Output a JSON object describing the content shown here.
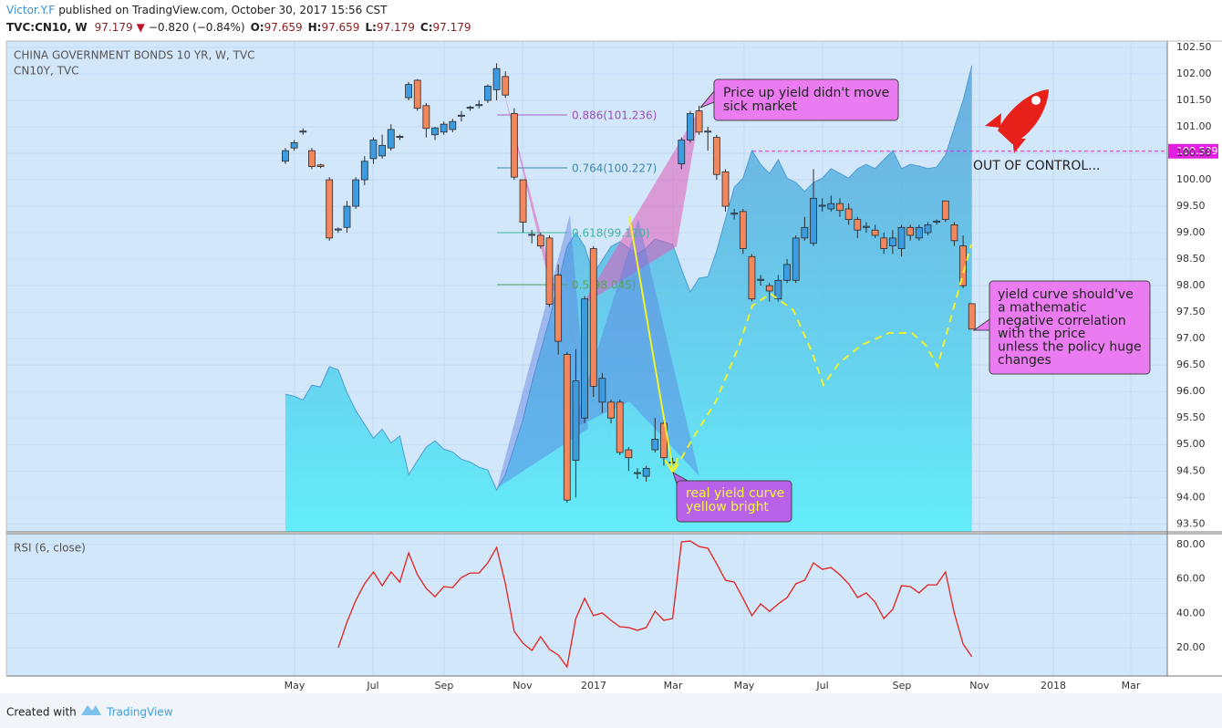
{
  "header": {
    "author": "Victor.Y.F",
    "published": "published on TradingView.com, October 30, 2017 15:56 CST",
    "symbol": "TVC:CN10, W",
    "last": "97.179",
    "change": "−0.820 (−0.84%)",
    "ohlc": [
      {
        "label": "O:",
        "value": "97.659"
      },
      {
        "label": "H:",
        "value": "97.659"
      },
      {
        "label": "L:",
        "value": "97.179"
      },
      {
        "label": "C:",
        "value": "97.179"
      }
    ]
  },
  "chart_data": [
    {
      "type": "candlestick",
      "title": "CHINA GOVERNMENT BONDS 10 YR, W, TVC",
      "x": [
        0,
        1,
        2,
        3,
        4,
        5,
        6,
        7,
        8,
        9,
        10,
        11,
        12,
        13,
        14,
        15,
        16,
        17,
        18,
        19,
        20,
        21,
        22,
        23,
        24,
        25,
        26,
        27,
        28,
        29,
        30,
        31,
        32,
        33,
        34,
        35,
        36,
        37,
        38,
        39,
        40,
        41,
        42,
        43,
        44,
        45,
        46,
        47,
        48,
        49,
        50,
        51,
        52,
        53,
        54,
        55,
        56,
        57,
        58,
        59,
        60,
        61,
        62,
        63,
        64,
        65,
        66,
        67,
        68,
        69,
        70,
        71,
        72,
        73,
        74,
        75,
        76,
        77,
        78
      ],
      "open": [
        100.35,
        100.6,
        100.9,
        100.55,
        100.28,
        100.0,
        99.05,
        99.1,
        99.5,
        100.0,
        100.4,
        100.45,
        100.6,
        100.8,
        101.55,
        101.88,
        101.4,
        100.85,
        100.9,
        100.95,
        101.2,
        101.35,
        101.4,
        101.5,
        101.7,
        101.95,
        101.25,
        100.0,
        98.95,
        98.95,
        98.9,
        98.2,
        96.7,
        94.7,
        95.5,
        98.7,
        95.8,
        95.8,
        95.8,
        94.9,
        94.45,
        94.4,
        94.9,
        95.4,
        94.65,
        100.3,
        100.75,
        101.3,
        100.9,
        100.8,
        100.15,
        99.35,
        99.4,
        98.55,
        98.1,
        98.0,
        97.75,
        98.1,
        98.1,
        98.9,
        98.8,
        99.5,
        99.45,
        99.55,
        99.45,
        99.25,
        99.1,
        99.05,
        98.9,
        98.75,
        98.7,
        99.1,
        98.9,
        99.0,
        99.2,
        99.6,
        99.15,
        98.75,
        97.659
      ],
      "high": [
        100.6,
        100.75,
        100.97,
        100.6,
        100.3,
        100.05,
        99.1,
        99.6,
        100.05,
        100.45,
        100.8,
        100.85,
        101.05,
        100.85,
        101.85,
        101.9,
        101.45,
        101.0,
        101.1,
        101.15,
        101.3,
        101.4,
        101.5,
        101.8,
        102.2,
        102.05,
        101.35,
        100.0,
        99.05,
        99.0,
        98.95,
        98.4,
        96.75,
        96.8,
        97.8,
        98.75,
        96.35,
        95.85,
        95.85,
        94.95,
        94.55,
        94.6,
        95.5,
        95.45,
        94.75,
        100.8,
        101.3,
        101.4,
        101.0,
        100.85,
        100.2,
        99.45,
        99.45,
        98.6,
        98.2,
        98.05,
        98.2,
        98.5,
        98.95,
        99.3,
        100.2,
        99.65,
        99.7,
        99.65,
        99.55,
        99.3,
        99.2,
        99.15,
        99.0,
        99.05,
        99.15,
        99.15,
        99.15,
        99.2,
        99.25,
        99.6,
        99.2,
        98.95,
        97.659
      ],
      "low": [
        100.3,
        100.55,
        100.85,
        100.2,
        100.22,
        98.85,
        99.0,
        99.0,
        99.45,
        99.9,
        100.3,
        100.4,
        100.55,
        100.75,
        101.5,
        101.3,
        100.8,
        100.75,
        100.85,
        100.9,
        101.1,
        101.3,
        101.35,
        101.45,
        101.5,
        101.55,
        100.0,
        99.0,
        98.8,
        98.7,
        97.6,
        96.7,
        93.9,
        94.0,
        95.4,
        95.9,
        95.6,
        95.4,
        94.8,
        94.5,
        94.35,
        94.3,
        94.85,
        94.6,
        94.55,
        100.2,
        100.7,
        100.85,
        100.55,
        100.0,
        99.4,
        99.25,
        98.6,
        97.7,
        98.0,
        97.7,
        97.7,
        98.05,
        98.05,
        98.85,
        98.75,
        99.4,
        99.4,
        99.3,
        99.15,
        98.9,
        99.0,
        98.9,
        98.6,
        98.6,
        98.55,
        98.85,
        98.85,
        98.95,
        99.15,
        99.2,
        98.75,
        97.95,
        97.179
      ],
      "close": [
        100.55,
        100.7,
        100.92,
        100.25,
        100.25,
        98.9,
        99.07,
        99.5,
        100.0,
        100.35,
        100.75,
        100.65,
        100.95,
        100.82,
        101.8,
        101.35,
        100.97,
        100.98,
        101.05,
        101.1,
        101.22,
        101.37,
        101.42,
        101.77,
        102.1,
        101.6,
        100.05,
        99.2,
        98.97,
        98.75,
        97.65,
        96.95,
        93.95,
        96.2,
        97.75,
        96.1,
        96.25,
        95.5,
        94.85,
        94.75,
        94.47,
        94.55,
        95.1,
        94.75,
        94.67,
        100.75,
        101.25,
        100.9,
        100.92,
        100.1,
        99.5,
        99.37,
        98.7,
        97.75,
        98.12,
        97.9,
        98.1,
        98.4,
        98.9,
        99.1,
        99.65,
        99.52,
        99.55,
        99.42,
        99.25,
        99.05,
        99.12,
        98.95,
        98.7,
        98.9,
        99.1,
        98.95,
        99.1,
        99.15,
        99.22,
        99.25,
        98.85,
        98.0,
        97.179
      ],
      "up_color": "#3d9be0",
      "down_color": "#f2875e",
      "border_color": "#2b2b2b",
      "series": [
        {
          "name": "CN10Y, TVC",
          "type": "area",
          "color": "#4e9cd6",
          "fill_bottom_color": "#5eeefa",
          "values": [
            95.95,
            95.91,
            95.84,
            96.12,
            96.09,
            96.47,
            96.41,
            95.98,
            95.64,
            95.38,
            95.12,
            95.29,
            95.03,
            95.16,
            94.43,
            94.69,
            94.95,
            95.07,
            94.91,
            94.86,
            94.72,
            94.67,
            94.57,
            94.52,
            94.14,
            94.43,
            94.95,
            95.47,
            96.16,
            96.76,
            97.36,
            98.05,
            98.74,
            99.0,
            98.74,
            98.22,
            98.48,
            98.74,
            98.83,
            98.71,
            98.6,
            98.71,
            98.88,
            98.83,
            98.78,
            98.31,
            97.88,
            98.14,
            98.17,
            98.66,
            99.26,
            99.86,
            100.03,
            100.55,
            100.29,
            100.12,
            100.38,
            100.03,
            99.95,
            99.78,
            99.95,
            100.03,
            100.21,
            100.12,
            100.03,
            100.21,
            100.29,
            100.21,
            100.38,
            100.55,
            100.21,
            100.29,
            100.26,
            100.21,
            100.24,
            100.47,
            100.98,
            101.5,
            102.16
          ]
        }
      ],
      "price_line": {
        "value": 100.539,
        "color": "#e21fe0"
      },
      "xlim": [
        -31.7,
        100.2
      ],
      "ylim": [
        93.35,
        102.62
      ],
      "yticks": [
        {
          "value": 93.5,
          "label": "93.50"
        },
        {
          "value": 94,
          "label": "94.00"
        },
        {
          "value": 94.5,
          "label": "94.50"
        },
        {
          "value": 95,
          "label": "95.00"
        },
        {
          "value": 95.5,
          "label": "95.50"
        },
        {
          "value": 96,
          "label": "96.00"
        },
        {
          "value": 96.5,
          "label": "96.50"
        },
        {
          "value": 97,
          "label": "97.00"
        },
        {
          "value": 97.5,
          "label": "97.50"
        },
        {
          "value": 98,
          "label": "98.00"
        },
        {
          "value": 98.5,
          "label": "98.50"
        },
        {
          "value": 99,
          "label": "99.00"
        },
        {
          "value": 99.5,
          "label": "99.50"
        },
        {
          "value": 100,
          "label": "100.00"
        },
        {
          "value": 100.5,
          "label": "100.50"
        },
        {
          "value": 101,
          "label": "101.00"
        },
        {
          "value": 101.5,
          "label": "101.50"
        },
        {
          "value": 102,
          "label": "102.00"
        },
        {
          "value": 102.5,
          "label": "102.50"
        }
      ],
      "grid": true,
      "annotations": {
        "fib_levels": [
          "0.886(101.236)",
          "0.764(100.227)",
          "0.618(99.120)",
          "0.5(98.045)"
        ],
        "callout_price": [
          "Price up yield didn't move",
          "sick market"
        ],
        "out_of_control": "OUT OF CONTROL...",
        "callout_real": [
          "real yield curve",
          "yellow bright"
        ],
        "callout_correlation": [
          "yield curve should've",
          "a mathematic",
          "negative correlation",
          "with the price",
          "unless the policy huge",
          "changes"
        ]
      }
    },
    {
      "type": "line",
      "title": "RSI (6, close)",
      "x": [
        0,
        1,
        2,
        3,
        4,
        5,
        6,
        7,
        8,
        9,
        10,
        11,
        12,
        13,
        14,
        15,
        16,
        17,
        18,
        19,
        20,
        21,
        22,
        23,
        24,
        25,
        26,
        27,
        28,
        29,
        30,
        31,
        32,
        33,
        34,
        35,
        36,
        37,
        38,
        39,
        40,
        41,
        42,
        43,
        44,
        45,
        46,
        47,
        48,
        49,
        50,
        51,
        52,
        53,
        54,
        55,
        56,
        57,
        58,
        59,
        60,
        61,
        62,
        63,
        64,
        65,
        66,
        67,
        68,
        69,
        70,
        71,
        72,
        73,
        74,
        75,
        76,
        77,
        78
      ],
      "series": [
        {
          "color": "#e3201c",
          "values": [
            null,
            null,
            null,
            null,
            null,
            null,
            20,
            34.9,
            47.6,
            57.2,
            64.1,
            56.1,
            64.1,
            58.2,
            75.2,
            62.5,
            54.5,
            49.7,
            55.6,
            55,
            60.9,
            63.5,
            63.5,
            69.4,
            78.4,
            57.2,
            29.5,
            22.6,
            18.4,
            26.4,
            19,
            15.7,
            8.8,
            37,
            48.7,
            38.6,
            40.2,
            35.9,
            32.2,
            31.7,
            30.1,
            31.7,
            41.2,
            35.9,
            37,
            81.6,
            82.1,
            78.9,
            77.9,
            68.8,
            59.3,
            58.2,
            48.7,
            38.6,
            45.5,
            41.2,
            45.5,
            49.2,
            57.2,
            59.3,
            69.4,
            65.7,
            66.7,
            62.5,
            57.2,
            49.2,
            51.9,
            46.5,
            37,
            42.3,
            56.1,
            55.6,
            51.9,
            56.6,
            56.6,
            64.1,
            40.2,
            22.1,
            14.7
          ]
        }
      ],
      "xlim": [
        -31.7,
        100.2
      ],
      "ylim": [
        3.5,
        86.4
      ],
      "xticks": [
        {
          "value": 1.04,
          "label": "May"
        },
        {
          "value": 9.95,
          "label": "Jul"
        },
        {
          "value": 18.03,
          "label": "Sep"
        },
        {
          "value": 26.94,
          "label": "Nov"
        },
        {
          "value": 35.03,
          "label": "2017"
        },
        {
          "value": 44.04,
          "label": "Mar"
        },
        {
          "value": 52.12,
          "label": "May"
        },
        {
          "value": 61.04,
          "label": "Jul"
        },
        {
          "value": 70.05,
          "label": "Sep"
        },
        {
          "value": 78.86,
          "label": "Nov"
        },
        {
          "value": 87.25,
          "label": "2018"
        },
        {
          "value": 96.06,
          "label": "Mar"
        }
      ],
      "yticks": [
        {
          "value": 20,
          "label": "20.00"
        },
        {
          "value": 40,
          "label": "40.00"
        },
        {
          "value": 60,
          "label": "60.00"
        },
        {
          "value": 80,
          "label": "80.00"
        }
      ],
      "grid": true
    }
  ],
  "footer": {
    "created": "Created with",
    "brand": "TradingView"
  }
}
